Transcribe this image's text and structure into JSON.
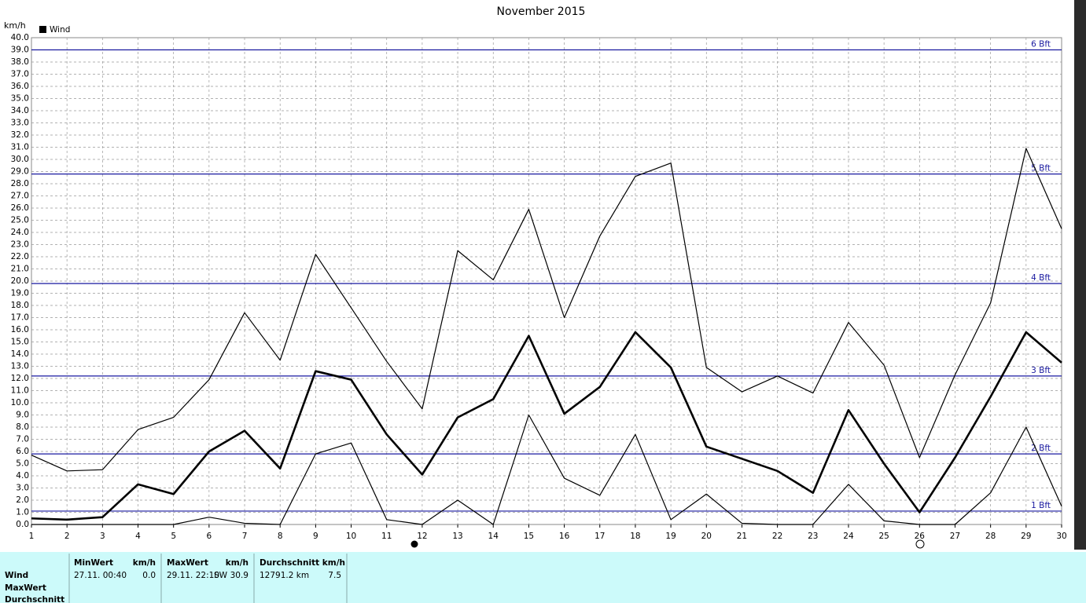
{
  "chart_data": {
    "type": "line",
    "title": "November 2015",
    "y_label": "km/h",
    "x": [
      1,
      2,
      3,
      4,
      5,
      6,
      7,
      8,
      9,
      10,
      11,
      12,
      13,
      14,
      15,
      16,
      17,
      18,
      19,
      20,
      21,
      22,
      23,
      24,
      25,
      26,
      27,
      28,
      29,
      30
    ],
    "xlim": [
      1,
      30
    ],
    "xticks": [
      1,
      2,
      3,
      4,
      5,
      6,
      7,
      8,
      9,
      10,
      11,
      12,
      13,
      14,
      15,
      16,
      17,
      18,
      19,
      20,
      21,
      22,
      23,
      24,
      25,
      26,
      27,
      28,
      29,
      30
    ],
    "ylim": [
      0,
      40
    ],
    "yticks": [
      {
        "value": 0,
        "label": "0.0"
      },
      {
        "value": 1,
        "label": "1.0"
      },
      {
        "value": 2,
        "label": "2.0"
      },
      {
        "value": 3,
        "label": "3.0"
      },
      {
        "value": 4,
        "label": "4.0"
      },
      {
        "value": 5,
        "label": "5.0"
      },
      {
        "value": 6,
        "label": "6.0"
      },
      {
        "value": 7,
        "label": "7.0"
      },
      {
        "value": 8,
        "label": "8.0"
      },
      {
        "value": 9,
        "label": "9.0"
      },
      {
        "value": 10,
        "label": "10.0"
      },
      {
        "value": 11,
        "label": "11.0"
      },
      {
        "value": 12,
        "label": "12.0"
      },
      {
        "value": 13,
        "label": "13.0"
      },
      {
        "value": 14,
        "label": "14.0"
      },
      {
        "value": 15,
        "label": "15.0"
      },
      {
        "value": 16,
        "label": "16.0"
      },
      {
        "value": 17,
        "label": "17.0"
      },
      {
        "value": 18,
        "label": "18.0"
      },
      {
        "value": 19,
        "label": "19.0"
      },
      {
        "value": 20,
        "label": "20.0"
      },
      {
        "value": 21,
        "label": "21.0"
      },
      {
        "value": 22,
        "label": "22.0"
      },
      {
        "value": 23,
        "label": "23.0"
      },
      {
        "value": 24,
        "label": "24.0"
      },
      {
        "value": 25,
        "label": "25.0"
      },
      {
        "value": 26,
        "label": "26.0"
      },
      {
        "value": 27,
        "label": "27.0"
      },
      {
        "value": 28,
        "label": "28.0"
      },
      {
        "value": 29,
        "label": "29.0"
      },
      {
        "value": 30,
        "label": "30.0"
      },
      {
        "value": 31,
        "label": "31.0"
      },
      {
        "value": 32,
        "label": "32.0"
      },
      {
        "value": 33,
        "label": "33.0"
      },
      {
        "value": 34,
        "label": "34.0"
      },
      {
        "value": 35,
        "label": "35.0"
      },
      {
        "value": 36,
        "label": "36.0"
      },
      {
        "value": 37,
        "label": "37.0"
      },
      {
        "value": 38,
        "label": "38.0"
      },
      {
        "value": 39,
        "label": "39.0"
      },
      {
        "value": 40,
        "label": "40.0"
      }
    ],
    "grid": true,
    "reference_lines": [
      {
        "value": 1.1,
        "label": "1 Bft"
      },
      {
        "value": 5.8,
        "label": "2 Bft"
      },
      {
        "value": 12.2,
        "label": "3 Bft"
      },
      {
        "value": 19.8,
        "label": "4 Bft"
      },
      {
        "value": 28.8,
        "label": "5 Bft"
      },
      {
        "value": 39.0,
        "label": "6 Bft"
      }
    ],
    "reference_color": "#1a1aa0",
    "series": [
      {
        "color": "#000000",
        "width": 1.2,
        "values": [
          5.7,
          4.4,
          4.5,
          7.8,
          8.8,
          11.9,
          17.4,
          13.5,
          22.2,
          17.8,
          13.4,
          9.5,
          22.5,
          20.1,
          25.9,
          17.0,
          23.7,
          28.6,
          29.7,
          12.9,
          10.9,
          12.2,
          10.8,
          16.6,
          13.1,
          5.5,
          12.3,
          18.2,
          30.9,
          24.3
        ]
      },
      {
        "name": "Wind",
        "color": "#000000",
        "width": 2.6,
        "values": [
          0.5,
          0.4,
          0.6,
          3.3,
          2.5,
          6.0,
          7.7,
          4.6,
          12.6,
          11.9,
          7.4,
          4.1,
          8.8,
          10.3,
          15.5,
          9.1,
          11.3,
          15.8,
          12.9,
          6.4,
          5.4,
          4.4,
          2.6,
          9.4,
          5.0,
          1.0,
          5.5,
          10.5,
          15.8,
          13.3
        ]
      },
      {
        "color": "#000000",
        "width": 1.2,
        "values": [
          0,
          0,
          0,
          0,
          0,
          0.6,
          0.1,
          0,
          5.8,
          6.7,
          0.4,
          0,
          2.0,
          0,
          9.0,
          3.8,
          2.4,
          7.4,
          0.4,
          2.5,
          0.1,
          0,
          0,
          3.3,
          0.3,
          0,
          0,
          2.6,
          8.0,
          1.5
        ]
      }
    ]
  },
  "summary": {
    "row_labels": [
      "Wind",
      "MaxWert",
      "Durchschnitt"
    ],
    "min": {
      "header": "MinWert",
      "unit": "km/h",
      "time": "27.11.  00:40",
      "value": "0.0"
    },
    "max": {
      "header": "MaxWert",
      "unit": "km/h",
      "time": "29.11.  22:10",
      "dir": "SW",
      "value": "30.9"
    },
    "avg": {
      "header": "Durchschnitt km/h",
      "distance": "12791.2 km",
      "value": "7.5"
    }
  }
}
